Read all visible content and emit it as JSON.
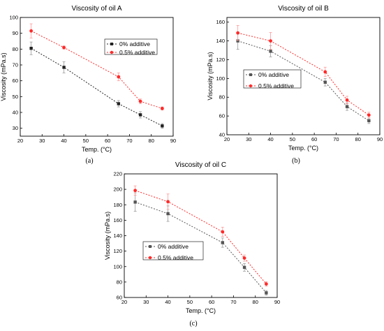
{
  "chart_data": [
    {
      "type": "line",
      "panel_label": "(a)",
      "title": "Viscosity of oil A",
      "xlabel": "Temp. (°C)",
      "ylabel": "Viscosity (mPa.s)",
      "xlim": [
        20,
        90
      ],
      "ylim": [
        25,
        100
      ],
      "xticks": [
        20,
        30,
        40,
        50,
        60,
        70,
        80,
        90
      ],
      "yticks": [
        30,
        40,
        50,
        60,
        70,
        80,
        90,
        100
      ],
      "legend_position": "upper-right",
      "x": [
        25,
        40,
        65,
        75,
        85
      ],
      "series": [
        {
          "name": "0% additive",
          "color": "#222222",
          "marker": "square",
          "values": [
            80.5,
            68.5,
            45.5,
            38.5,
            31.5
          ],
          "errors": [
            4,
            3.5,
            2,
            2,
            1.5
          ]
        },
        {
          "name": "0.5% additive",
          "color": "#ff2a2a",
          "marker": "circle",
          "values": [
            91.5,
            81,
            62.5,
            47,
            42.5
          ],
          "errors": [
            4.5,
            1,
            2.5,
            1.5,
            1
          ]
        }
      ]
    },
    {
      "type": "line",
      "panel_label": "(b)",
      "title": "Viscosity of oil B",
      "xlabel": "Temp. (°C)",
      "ylabel": "Viscosity (mPa.s)",
      "xlim": [
        20,
        90
      ],
      "ylim": [
        40,
        165
      ],
      "xticks": [
        20,
        30,
        40,
        50,
        60,
        70,
        80,
        90
      ],
      "yticks": [
        40,
        60,
        80,
        100,
        120,
        140,
        160
      ],
      "legend_position": "middle-left",
      "x": [
        25,
        40,
        65,
        75,
        85
      ],
      "series": [
        {
          "name": "0% additive",
          "color": "#555555",
          "marker": "square",
          "values": [
            140,
            129,
            96,
            70,
            55
          ],
          "errors": [
            9,
            6,
            4,
            4,
            3
          ]
        },
        {
          "name": "0.5% additive",
          "color": "#ff2a2a",
          "marker": "circle",
          "values": [
            148.5,
            140,
            107,
            77,
            61
          ],
          "errors": [
            8,
            9,
            5,
            4,
            3
          ]
        }
      ]
    },
    {
      "type": "line",
      "panel_label": "(c)",
      "title": "Viscosity of oil C",
      "xlabel": "Temp. (°C)",
      "ylabel": "Viscosity (mPa.s)",
      "xlim": [
        20,
        90
      ],
      "ylim": [
        60,
        220
      ],
      "xticks": [
        20,
        30,
        40,
        50,
        60,
        70,
        80,
        90
      ],
      "yticks": [
        60,
        80,
        100,
        120,
        140,
        160,
        180,
        200,
        220
      ],
      "legend_position": "middle-left",
      "x": [
        25,
        40,
        65,
        75,
        85
      ],
      "series": [
        {
          "name": "0% additive",
          "color": "#555555",
          "marker": "square",
          "values": [
            183.5,
            168.5,
            131,
            99,
            66
          ],
          "errors": [
            12,
            10,
            6,
            5,
            3
          ]
        },
        {
          "name": "0.5% additive",
          "color": "#ff2a2a",
          "marker": "circle",
          "values": [
            198.5,
            184,
            145,
            111,
            77.5
          ],
          "errors": [
            6,
            10,
            6,
            4,
            3
          ]
        }
      ]
    }
  ]
}
